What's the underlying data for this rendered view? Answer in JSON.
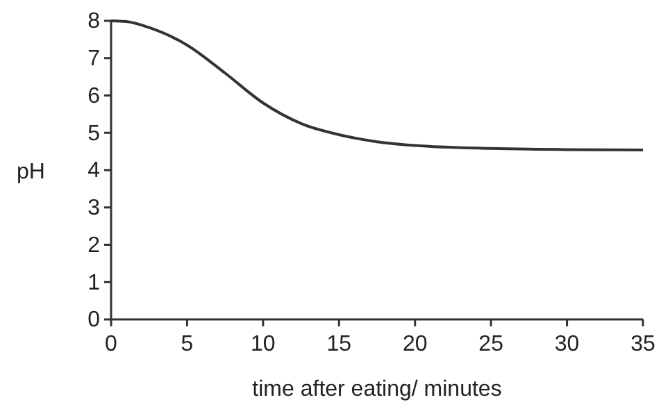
{
  "chart_data": {
    "type": "line",
    "xlabel": "time after eating/ minutes",
    "ylabel": "pH",
    "x": [
      0,
      1,
      2.5,
      5,
      7.5,
      10,
      12.5,
      15,
      17.5,
      20,
      25,
      30,
      35
    ],
    "series": [
      {
        "color": "#333333",
        "values": [
          8,
          7.98,
          7.82,
          7.35,
          6.6,
          5.8,
          5.25,
          4.95,
          4.76,
          4.66,
          4.58,
          4.55,
          4.54
        ]
      }
    ],
    "xlim": [
      0,
      35
    ],
    "xticks": [
      0,
      5,
      10,
      15,
      20,
      25,
      30,
      35
    ],
    "ylim": [
      0,
      8
    ],
    "yticks": [
      0,
      1,
      2,
      3,
      4,
      5,
      6,
      7,
      8
    ],
    "grid": false,
    "marker": "none",
    "line_style": "solid"
  }
}
